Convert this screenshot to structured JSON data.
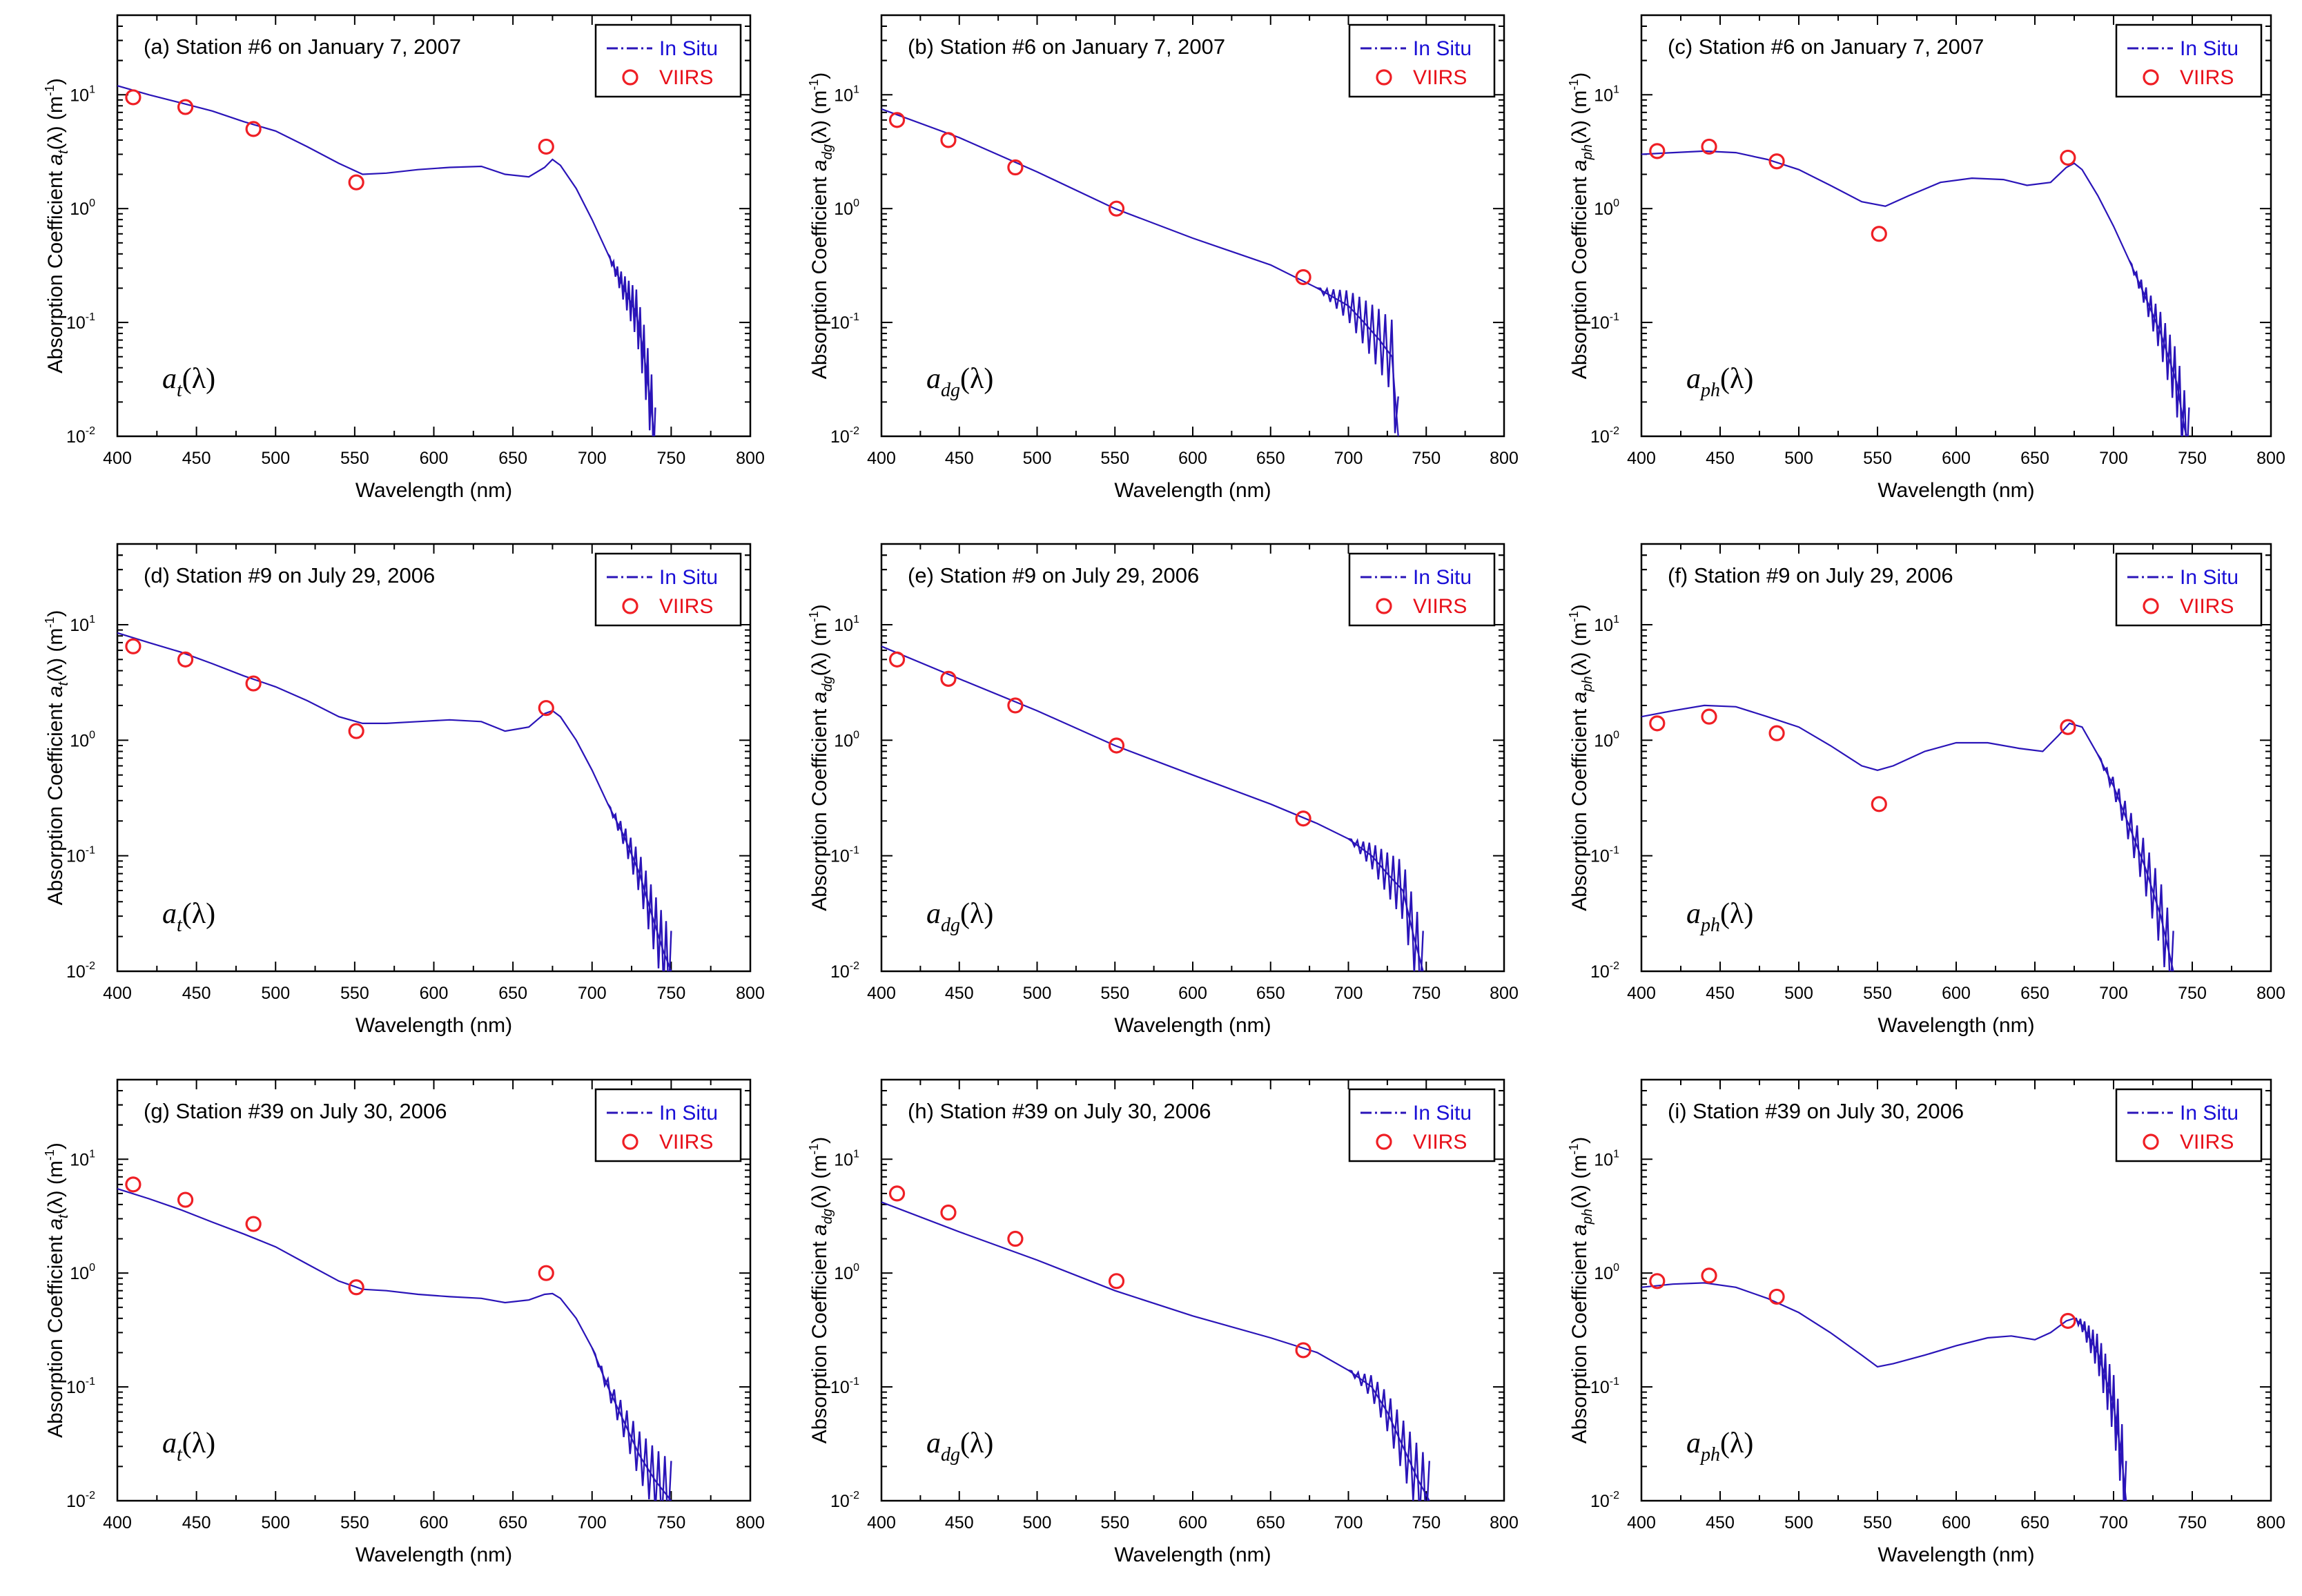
{
  "colors": {
    "insitu": "#2a14b8",
    "viirs": "#ef1f25"
  },
  "chart_data": [
    {
      "id": "a",
      "type": "line",
      "title": "(a) Station #6 on January 7, 2007",
      "xlabel": "Wavelength (nm)",
      "ylabel": "Absorption Coefficient a_t(λ) (m⁻¹)",
      "ylabel_pre": "Absorption Coefficient ",
      "ylabel_var": "a",
      "ylabel_sub": "t",
      "ylabel_post": "(λ) (m",
      "ylabel_sup": "-1",
      "ylabel_end": ")",
      "panel_label": "a",
      "panel_label_sub": "t",
      "panel_label_post": "(λ)",
      "xlim": [
        400,
        800
      ],
      "ylim": [
        0.01,
        50
      ],
      "yscale": "log",
      "xticks": [
        400,
        450,
        500,
        550,
        600,
        650,
        700,
        750,
        800
      ],
      "ytick_exponents": [
        -2,
        -1,
        0,
        1
      ],
      "legend": {
        "in_situ": "In Situ",
        "viirs": "VIIRS"
      },
      "in_situ": {
        "x": [
          400,
          420,
          440,
          460,
          480,
          500,
          520,
          540,
          555,
          570,
          590,
          610,
          630,
          645,
          660,
          670,
          675,
          680,
          690,
          700,
          710,
          720,
          728,
          733,
          737,
          740
        ],
        "y": [
          12,
          10,
          8.5,
          7.2,
          5.8,
          4.8,
          3.5,
          2.5,
          2.0,
          2.05,
          2.2,
          2.3,
          2.35,
          2.0,
          1.9,
          2.3,
          2.7,
          2.4,
          1.5,
          0.8,
          0.4,
          0.2,
          0.12,
          0.05,
          0.02,
          0.008
        ]
      },
      "viirs": {
        "x": [
          410,
          443,
          486,
          551,
          671
        ],
        "y": [
          9.5,
          7.8,
          5.0,
          1.7,
          3.5
        ]
      }
    },
    {
      "id": "b",
      "type": "line",
      "title": "(b) Station #6 on January 7, 2007",
      "xlabel": "Wavelength (nm)",
      "ylabel": "Absorption Coefficient a_dg(λ) (m⁻¹)",
      "ylabel_pre": "Absorption Coefficient ",
      "ylabel_var": "a",
      "ylabel_sub": "dg",
      "ylabel_post": "(λ) (m",
      "ylabel_sup": "-1",
      "ylabel_end": ")",
      "panel_label": "a",
      "panel_label_sub": "dg",
      "panel_label_post": "(λ)",
      "xlim": [
        400,
        800
      ],
      "ylim": [
        0.01,
        50
      ],
      "yscale": "log",
      "xticks": [
        400,
        450,
        500,
        550,
        600,
        650,
        700,
        750,
        800
      ],
      "ytick_exponents": [
        -2,
        -1,
        0,
        1
      ],
      "legend": {
        "in_situ": "In Situ",
        "viirs": "VIIRS"
      },
      "in_situ": {
        "x": [
          400,
          450,
          500,
          550,
          600,
          650,
          680,
          700,
          710,
          720,
          728,
          732
        ],
        "y": [
          7.5,
          4.2,
          2.1,
          1.0,
          0.55,
          0.32,
          0.2,
          0.14,
          0.1,
          0.07,
          0.05,
          0.01
        ]
      },
      "viirs": {
        "x": [
          410,
          443,
          486,
          551,
          671
        ],
        "y": [
          6.0,
          4.0,
          2.3,
          1.0,
          0.25
        ]
      }
    },
    {
      "id": "c",
      "type": "line",
      "title": "(c) Station #6 on January 7, 2007",
      "xlabel": "Wavelength (nm)",
      "ylabel": "Absorption Coefficient a_ph(λ) (m⁻¹)",
      "ylabel_pre": "Absorption Coefficient ",
      "ylabel_var": "a",
      "ylabel_sub": "ph",
      "ylabel_post": "(λ) (m",
      "ylabel_sup": "-1",
      "ylabel_end": ")",
      "panel_label": "a",
      "panel_label_sub": "ph",
      "panel_label_post": "(λ)",
      "xlim": [
        400,
        800
      ],
      "ylim": [
        0.01,
        50
      ],
      "yscale": "log",
      "xticks": [
        400,
        450,
        500,
        550,
        600,
        650,
        700,
        750,
        800
      ],
      "ytick_exponents": [
        -2,
        -1,
        0,
        1
      ],
      "legend": {
        "in_situ": "In Situ",
        "viirs": "VIIRS"
      },
      "in_situ": {
        "x": [
          400,
          420,
          440,
          460,
          480,
          500,
          520,
          540,
          555,
          570,
          590,
          610,
          630,
          645,
          660,
          670,
          675,
          680,
          690,
          700,
          710,
          720,
          730,
          740,
          745,
          748
        ],
        "y": [
          3.0,
          3.1,
          3.2,
          3.1,
          2.7,
          2.2,
          1.6,
          1.15,
          1.05,
          1.3,
          1.7,
          1.85,
          1.8,
          1.6,
          1.7,
          2.3,
          2.5,
          2.2,
          1.3,
          0.7,
          0.35,
          0.17,
          0.08,
          0.03,
          0.012,
          0.008
        ]
      },
      "viirs": {
        "x": [
          410,
          443,
          486,
          551,
          671
        ],
        "y": [
          3.2,
          3.5,
          2.6,
          0.6,
          2.8
        ]
      }
    },
    {
      "id": "d",
      "type": "line",
      "title": "(d) Station #9 on July 29, 2006",
      "xlabel": "Wavelength (nm)",
      "ylabel": "Absorption Coefficient a_t(λ) (m⁻¹)",
      "ylabel_pre": "Absorption Coefficient ",
      "ylabel_var": "a",
      "ylabel_sub": "t",
      "ylabel_post": "(λ) (m",
      "ylabel_sup": "-1",
      "ylabel_end": ")",
      "panel_label": "a",
      "panel_label_sub": "t",
      "panel_label_post": "(λ)",
      "xlim": [
        400,
        800
      ],
      "ylim": [
        0.01,
        50
      ],
      "yscale": "log",
      "xticks": [
        400,
        450,
        500,
        550,
        600,
        650,
        700,
        750,
        800
      ],
      "ytick_exponents": [
        -2,
        -1,
        0,
        1
      ],
      "legend": {
        "in_situ": "In Situ",
        "viirs": "VIIRS"
      },
      "in_situ": {
        "x": [
          400,
          420,
          440,
          460,
          480,
          500,
          520,
          540,
          555,
          570,
          590,
          610,
          630,
          645,
          660,
          670,
          675,
          680,
          690,
          700,
          710,
          720,
          730,
          738,
          745,
          750
        ],
        "y": [
          8.5,
          7.0,
          5.8,
          4.6,
          3.6,
          2.9,
          2.2,
          1.6,
          1.4,
          1.4,
          1.45,
          1.5,
          1.45,
          1.2,
          1.3,
          1.7,
          1.8,
          1.6,
          1.0,
          0.55,
          0.28,
          0.15,
          0.07,
          0.03,
          0.015,
          0.01
        ]
      },
      "viirs": {
        "x": [
          410,
          443,
          486,
          551,
          671
        ],
        "y": [
          6.5,
          5.0,
          3.1,
          1.2,
          1.9
        ]
      }
    },
    {
      "id": "e",
      "type": "line",
      "title": "(e) Station #9 on July 29, 2006",
      "xlabel": "Wavelength (nm)",
      "ylabel": "Absorption Coefficient a_dg(λ) (m⁻¹)",
      "ylabel_pre": "Absorption Coefficient ",
      "ylabel_var": "a",
      "ylabel_sub": "dg",
      "ylabel_post": "(λ) (m",
      "ylabel_sup": "-1",
      "ylabel_end": ")",
      "panel_label": "a",
      "panel_label_sub": "dg",
      "panel_label_post": "(λ)",
      "xlim": [
        400,
        800
      ],
      "ylim": [
        0.01,
        50
      ],
      "yscale": "log",
      "xticks": [
        400,
        450,
        500,
        550,
        600,
        650,
        700,
        750,
        800
      ],
      "ytick_exponents": [
        -2,
        -1,
        0,
        1
      ],
      "legend": {
        "in_situ": "In Situ",
        "viirs": "VIIRS"
      },
      "in_situ": {
        "x": [
          400,
          450,
          500,
          550,
          600,
          650,
          680,
          700,
          715,
          725,
          735,
          742,
          748
        ],
        "y": [
          6.5,
          3.4,
          1.8,
          0.9,
          0.5,
          0.28,
          0.19,
          0.14,
          0.1,
          0.07,
          0.05,
          0.02,
          0.01
        ]
      },
      "viirs": {
        "x": [
          410,
          443,
          486,
          551,
          671
        ],
        "y": [
          5.0,
          3.4,
          2.0,
          0.9,
          0.21
        ]
      }
    },
    {
      "id": "f",
      "type": "line",
      "title": "(f) Station #9 on July 29, 2006",
      "xlabel": "Wavelength (nm)",
      "ylabel": "Absorption Coefficient a_ph(λ) (m⁻¹)",
      "ylabel_pre": "Absorption Coefficient ",
      "ylabel_var": "a",
      "ylabel_sub": "ph",
      "ylabel_post": "(λ) (m",
      "ylabel_sup": "-1",
      "ylabel_end": ")",
      "panel_label": "a",
      "panel_label_sub": "ph",
      "panel_label_post": "(λ)",
      "xlim": [
        400,
        800
      ],
      "ylim": [
        0.01,
        50
      ],
      "yscale": "log",
      "xticks": [
        400,
        450,
        500,
        550,
        600,
        650,
        700,
        750,
        800
      ],
      "ytick_exponents": [
        -2,
        -1,
        0,
        1
      ],
      "legend": {
        "in_situ": "In Situ",
        "viirs": "VIIRS"
      },
      "in_situ": {
        "x": [
          400,
          420,
          440,
          460,
          480,
          500,
          520,
          540,
          550,
          560,
          580,
          600,
          620,
          640,
          655,
          665,
          672,
          680,
          690,
          700,
          710,
          720,
          730,
          738
        ],
        "y": [
          1.6,
          1.8,
          2.0,
          1.95,
          1.6,
          1.3,
          0.9,
          0.6,
          0.55,
          0.6,
          0.8,
          0.95,
          0.95,
          0.85,
          0.8,
          1.1,
          1.4,
          1.3,
          0.75,
          0.4,
          0.18,
          0.08,
          0.03,
          0.01
        ]
      },
      "viirs": {
        "x": [
          410,
          443,
          486,
          551,
          671
        ],
        "y": [
          1.4,
          1.6,
          1.15,
          0.28,
          1.3
        ]
      }
    },
    {
      "id": "g",
      "type": "line",
      "title": "(g) Station #39 on July 30, 2006",
      "xlabel": "Wavelength (nm)",
      "ylabel": "Absorption Coefficient a_t(λ) (m⁻¹)",
      "ylabel_pre": "Absorption Coefficient ",
      "ylabel_var": "a",
      "ylabel_sub": "t",
      "ylabel_post": "(λ) (m",
      "ylabel_sup": "-1",
      "ylabel_end": ")",
      "panel_label": "a",
      "panel_label_sub": "t",
      "panel_label_post": "(λ)",
      "xlim": [
        400,
        800
      ],
      "ylim": [
        0.01,
        50
      ],
      "yscale": "log",
      "xticks": [
        400,
        450,
        500,
        550,
        600,
        650,
        700,
        750,
        800
      ],
      "ytick_exponents": [
        -2,
        -1,
        0,
        1
      ],
      "legend": {
        "in_situ": "In Situ",
        "viirs": "VIIRS"
      },
      "in_situ": {
        "x": [
          400,
          420,
          440,
          460,
          480,
          500,
          520,
          540,
          555,
          570,
          590,
          610,
          630,
          645,
          660,
          670,
          675,
          680,
          690,
          700,
          710,
          720,
          730,
          740,
          750
        ],
        "y": [
          5.5,
          4.5,
          3.6,
          2.8,
          2.2,
          1.7,
          1.2,
          0.85,
          0.72,
          0.7,
          0.65,
          0.62,
          0.6,
          0.55,
          0.58,
          0.65,
          0.66,
          0.6,
          0.4,
          0.22,
          0.1,
          0.05,
          0.025,
          0.015,
          0.01
        ]
      },
      "viirs": {
        "x": [
          410,
          443,
          486,
          551,
          671
        ],
        "y": [
          6.0,
          4.4,
          2.7,
          0.75,
          1.0
        ]
      }
    },
    {
      "id": "h",
      "type": "line",
      "title": "(h) Station #39 on July 30, 2006",
      "xlabel": "Wavelength (nm)",
      "ylabel": "Absorption Coefficient a_dg(λ) (m⁻¹)",
      "ylabel_pre": "Absorption Coefficient ",
      "ylabel_var": "a",
      "ylabel_sub": "dg",
      "ylabel_post": "(λ) (m",
      "ylabel_sup": "-1",
      "ylabel_end": ")",
      "panel_label": "a",
      "panel_label_sub": "dg",
      "panel_label_post": "(λ)",
      "xlim": [
        400,
        800
      ],
      "ylim": [
        0.01,
        50
      ],
      "yscale": "log",
      "xticks": [
        400,
        450,
        500,
        550,
        600,
        650,
        700,
        750,
        800
      ],
      "ytick_exponents": [
        -2,
        -1,
        0,
        1
      ],
      "legend": {
        "in_situ": "In Situ",
        "viirs": "VIIRS"
      },
      "in_situ": {
        "x": [
          400,
          450,
          500,
          550,
          600,
          650,
          680,
          700,
          715,
          725,
          735,
          745,
          752
        ],
        "y": [
          4.2,
          2.3,
          1.3,
          0.7,
          0.42,
          0.27,
          0.2,
          0.14,
          0.1,
          0.06,
          0.03,
          0.015,
          0.01
        ]
      },
      "viirs": {
        "x": [
          410,
          443,
          486,
          551,
          671
        ],
        "y": [
          5.0,
          3.4,
          2.0,
          0.85,
          0.21
        ]
      }
    },
    {
      "id": "i",
      "type": "line",
      "title": "(i) Station #39 on July 30, 2006",
      "xlabel": "Wavelength (nm)",
      "ylabel": "Absorption Coefficient a_ph(λ) (m⁻¹)",
      "ylabel_pre": "Absorption Coefficient ",
      "ylabel_var": "a",
      "ylabel_sub": "ph",
      "ylabel_post": "(λ) (m",
      "ylabel_sup": "-1",
      "ylabel_end": ")",
      "panel_label": "a",
      "panel_label_sub": "ph",
      "panel_label_post": "(λ)",
      "xlim": [
        400,
        800
      ],
      "ylim": [
        0.01,
        50
      ],
      "yscale": "log",
      "xticks": [
        400,
        450,
        500,
        550,
        600,
        650,
        700,
        750,
        800
      ],
      "ytick_exponents": [
        -2,
        -1,
        0,
        1
      ],
      "legend": {
        "in_situ": "In Situ",
        "viirs": "VIIRS"
      },
      "in_situ": {
        "x": [
          400,
          420,
          440,
          460,
          480,
          500,
          520,
          540,
          550,
          560,
          580,
          600,
          620,
          635,
          650,
          660,
          670,
          675,
          680,
          690,
          700,
          705,
          708
        ],
        "y": [
          0.75,
          0.8,
          0.82,
          0.75,
          0.6,
          0.45,
          0.3,
          0.19,
          0.15,
          0.16,
          0.19,
          0.23,
          0.27,
          0.28,
          0.26,
          0.3,
          0.38,
          0.4,
          0.35,
          0.2,
          0.07,
          0.025,
          0.01
        ]
      },
      "viirs": {
        "x": [
          410,
          443,
          486,
          551,
          671
        ],
        "y": [
          0.85,
          0.95,
          0.62,
          null,
          0.38
        ]
      }
    }
  ]
}
